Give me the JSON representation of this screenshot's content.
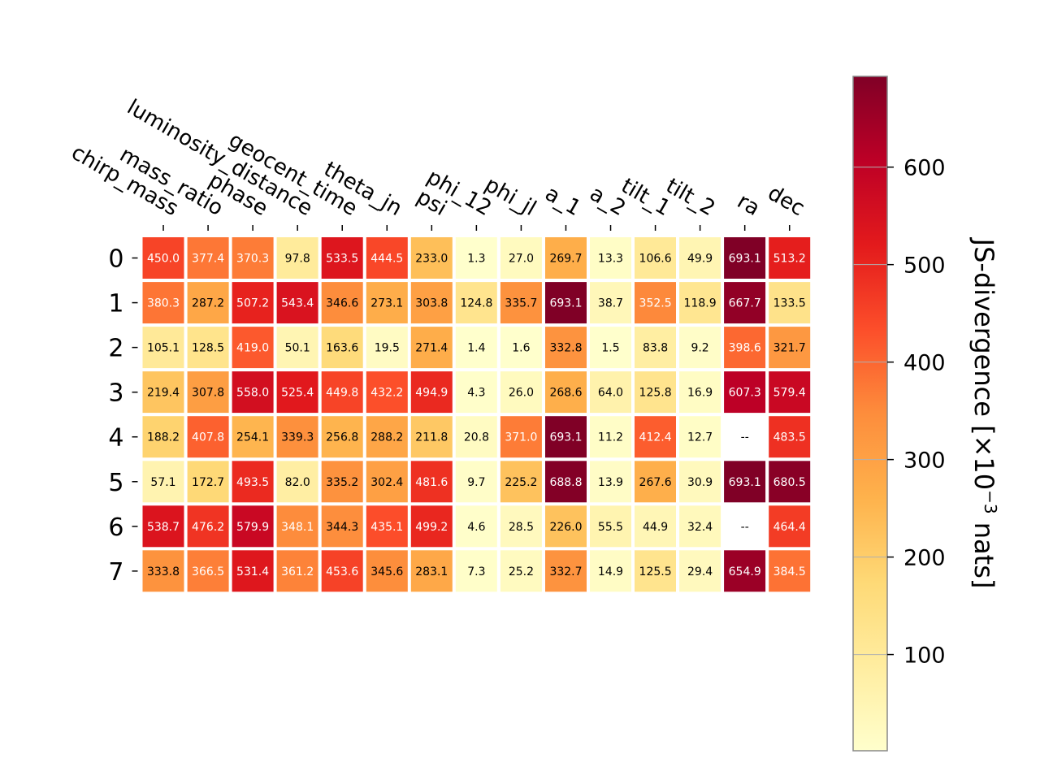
{
  "chart_data": {
    "type": "heatmap",
    "title": "",
    "columns": [
      "chirp_mass",
      "mass_ratio",
      "phase",
      "luminosity_distance",
      "geocent_time",
      "theta_jn",
      "psi",
      "phi_12",
      "phi_jl",
      "a_1",
      "a_2",
      "tilt_1",
      "tilt_2",
      "ra",
      "dec"
    ],
    "rows": [
      "0",
      "1",
      "2",
      "3",
      "4",
      "5",
      "6",
      "7"
    ],
    "values": [
      [
        450.0,
        377.4,
        370.3,
        97.8,
        533.5,
        444.5,
        233.0,
        1.3,
        27.0,
        269.7,
        13.3,
        106.6,
        49.9,
        693.1,
        513.2
      ],
      [
        380.3,
        287.2,
        507.2,
        543.4,
        346.6,
        273.1,
        303.8,
        124.8,
        335.7,
        693.1,
        38.7,
        352.5,
        118.9,
        667.7,
        133.5
      ],
      [
        105.1,
        128.5,
        419.0,
        50.1,
        163.6,
        19.5,
        271.4,
        1.4,
        1.6,
        332.8,
        1.5,
        83.8,
        9.2,
        398.6,
        321.7
      ],
      [
        219.4,
        307.8,
        558.0,
        525.4,
        449.8,
        432.2,
        494.9,
        4.3,
        26.0,
        268.6,
        64.0,
        125.8,
        16.9,
        607.3,
        579.4
      ],
      [
        188.2,
        407.8,
        254.1,
        339.3,
        256.8,
        288.2,
        211.8,
        20.8,
        371.0,
        693.1,
        11.2,
        412.4,
        12.7,
        null,
        483.5
      ],
      [
        57.1,
        172.7,
        493.5,
        82.0,
        335.2,
        302.4,
        481.6,
        9.7,
        225.2,
        688.8,
        13.9,
        267.6,
        30.9,
        693.1,
        680.5
      ],
      [
        538.7,
        476.2,
        579.9,
        348.1,
        344.3,
        435.1,
        499.2,
        4.6,
        28.5,
        226.0,
        55.5,
        44.9,
        32.4,
        null,
        464.4
      ],
      [
        333.8,
        366.5,
        531.4,
        361.2,
        453.6,
        345.6,
        283.1,
        7.3,
        25.2,
        332.7,
        14.9,
        125.5,
        29.4,
        654.9,
        384.5
      ]
    ],
    "missing_label": "--",
    "colorbar": {
      "label_main": "JS-divergence [×10",
      "label_exp": "−3",
      "label_unit": " nats]",
      "vmin": 1.3,
      "vmax": 693.1,
      "ticks": [
        100,
        200,
        300,
        400,
        500,
        600
      ],
      "colormap": "YlOrRd",
      "grid": true
    }
  }
}
